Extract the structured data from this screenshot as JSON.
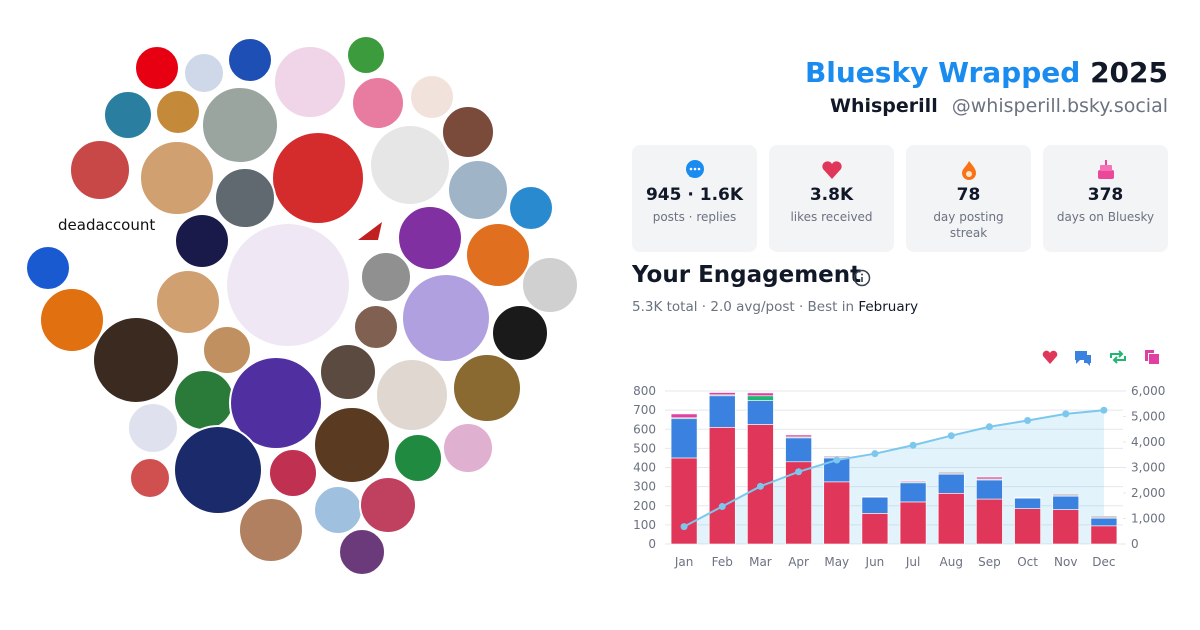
{
  "header": {
    "title": "Bluesky Wrapped",
    "year": "2025",
    "name": "Whisperill",
    "handle": "@whisperill.bsky.social"
  },
  "avatar_caption": "deadaccount",
  "stats": [
    {
      "value": "945 · 1.6K",
      "label": "posts · replies"
    },
    {
      "value": "3.8K",
      "label": "likes received"
    },
    {
      "value": "78",
      "label": "day posting streak"
    },
    {
      "value": "378",
      "label": "days on Bluesky"
    }
  ],
  "engagement": {
    "title": "Your Engagement",
    "summary": "5.3K total · 2.0 avg/post · Best in",
    "best_month": "February"
  },
  "chart_data": {
    "type": "bar",
    "stacked": true,
    "categories": [
      "Jan",
      "Feb",
      "Mar",
      "Apr",
      "May",
      "Jun",
      "Jul",
      "Aug",
      "Sep",
      "Oct",
      "Nov",
      "Dec"
    ],
    "series": [
      {
        "color": "#e0365a",
        "values": [
          450,
          610,
          625,
          430,
          325,
          160,
          220,
          265,
          235,
          185,
          180,
          95
        ]
      },
      {
        "color": "#3b82e0",
        "values": [
          205,
          165,
          125,
          125,
          125,
          85,
          100,
          100,
          100,
          55,
          70,
          40
        ]
      },
      {
        "color": "#22b573",
        "values": [
          5,
          5,
          25,
          5,
          5,
          3,
          5,
          5,
          5,
          3,
          5,
          5
        ]
      },
      {
        "color": "#e040a0",
        "values": [
          20,
          12,
          15,
          10,
          5,
          2,
          5,
          5,
          10,
          2,
          5,
          5
        ]
      },
      {
        "type": "line",
        "axis": "y2",
        "color": "#7cc8ec",
        "values": [
          680,
          1472,
          2262,
          2832,
          3292,
          3542,
          3872,
          4247,
          4597,
          4842,
          5102,
          5247
        ]
      }
    ],
    "ylim": [
      0,
      800
    ],
    "yticks": [
      0,
      100,
      200,
      300,
      400,
      500,
      600,
      700,
      800
    ],
    "y2lim": [
      0,
      6000
    ],
    "y2ticks": [
      0,
      {
        "value": 1000,
        "label": "1,000"
      },
      {
        "value": 2000,
        "label": "2,000"
      },
      {
        "value": 3000,
        "label": "3,000"
      },
      {
        "value": 4000,
        "label": "4,000"
      },
      {
        "value": 5000,
        "label": "5,000"
      },
      {
        "value": 6000,
        "label": "6,000"
      }
    ],
    "grid": true
  }
}
